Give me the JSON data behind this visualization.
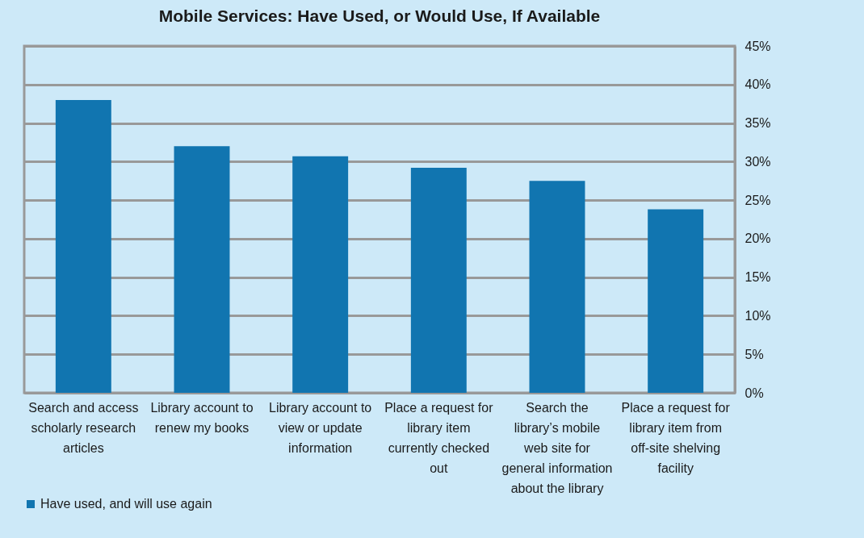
{
  "chart_data": {
    "type": "bar",
    "title": "Mobile Services: Have Used, or Would Use, If Available",
    "categories": [
      "Search and access scholarly research articles",
      "Library account to renew my books",
      "Library account to view or update information",
      "Place a request for library item currently checked out",
      "Search the library’s mobile web site for general information about the library",
      "Place a request for library item from off-site shelving facility"
    ],
    "series": [
      {
        "name": "Have used, and will use again",
        "color": "#1175b0",
        "values": [
          38.0,
          32.0,
          30.7,
          29.2,
          27.5,
          23.8
        ]
      }
    ],
    "ylim": [
      0,
      45
    ],
    "yticks": [
      {
        "value": 0,
        "label": "0%"
      },
      {
        "value": 5,
        "label": "5%"
      },
      {
        "value": 10,
        "label": "10%"
      },
      {
        "value": 15,
        "label": "15%"
      },
      {
        "value": 20,
        "label": "20%"
      },
      {
        "value": 25,
        "label": "25%"
      },
      {
        "value": 30,
        "label": "30%"
      },
      {
        "value": 35,
        "label": "35%"
      },
      {
        "value": 40,
        "label": "40%"
      },
      {
        "value": 45,
        "label": "45%"
      }
    ],
    "grid": "y",
    "legend": "bottom left"
  }
}
